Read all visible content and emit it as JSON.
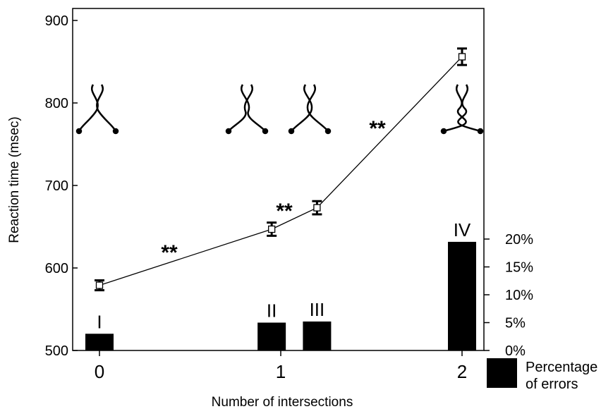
{
  "chart_data": {
    "type": "line",
    "xlabel": "Number of intersections",
    "ylabel": "Reaction time (msec)",
    "x_ticks": [
      "0",
      "1",
      "2"
    ],
    "y_ticks": [
      500,
      600,
      700,
      800,
      900
    ],
    "ylim": [
      500,
      920
    ],
    "y2_ticks": [
      "0%",
      "5%",
      "10%",
      "15%",
      "20%"
    ],
    "y2lim": [
      0,
      20
    ],
    "conditions": [
      "I",
      "II",
      "III",
      "IV"
    ],
    "reaction_time": {
      "x": [
        0,
        0.95,
        1.2,
        2
      ],
      "y": [
        579,
        647,
        673,
        856
      ],
      "error": [
        6,
        8,
        8,
        10
      ]
    },
    "error_bars": {
      "name": "Percentage of errors",
      "x": [
        0,
        0.95,
        1.2,
        2
      ],
      "values": [
        3,
        5,
        5.2,
        19.5
      ],
      "labels": [
        "I",
        "II",
        "III",
        "IV"
      ]
    },
    "annotations": [
      "**",
      "**",
      "**"
    ],
    "legend": {
      "label": "Percentage of errors",
      "placement": "bottom-right"
    }
  }
}
